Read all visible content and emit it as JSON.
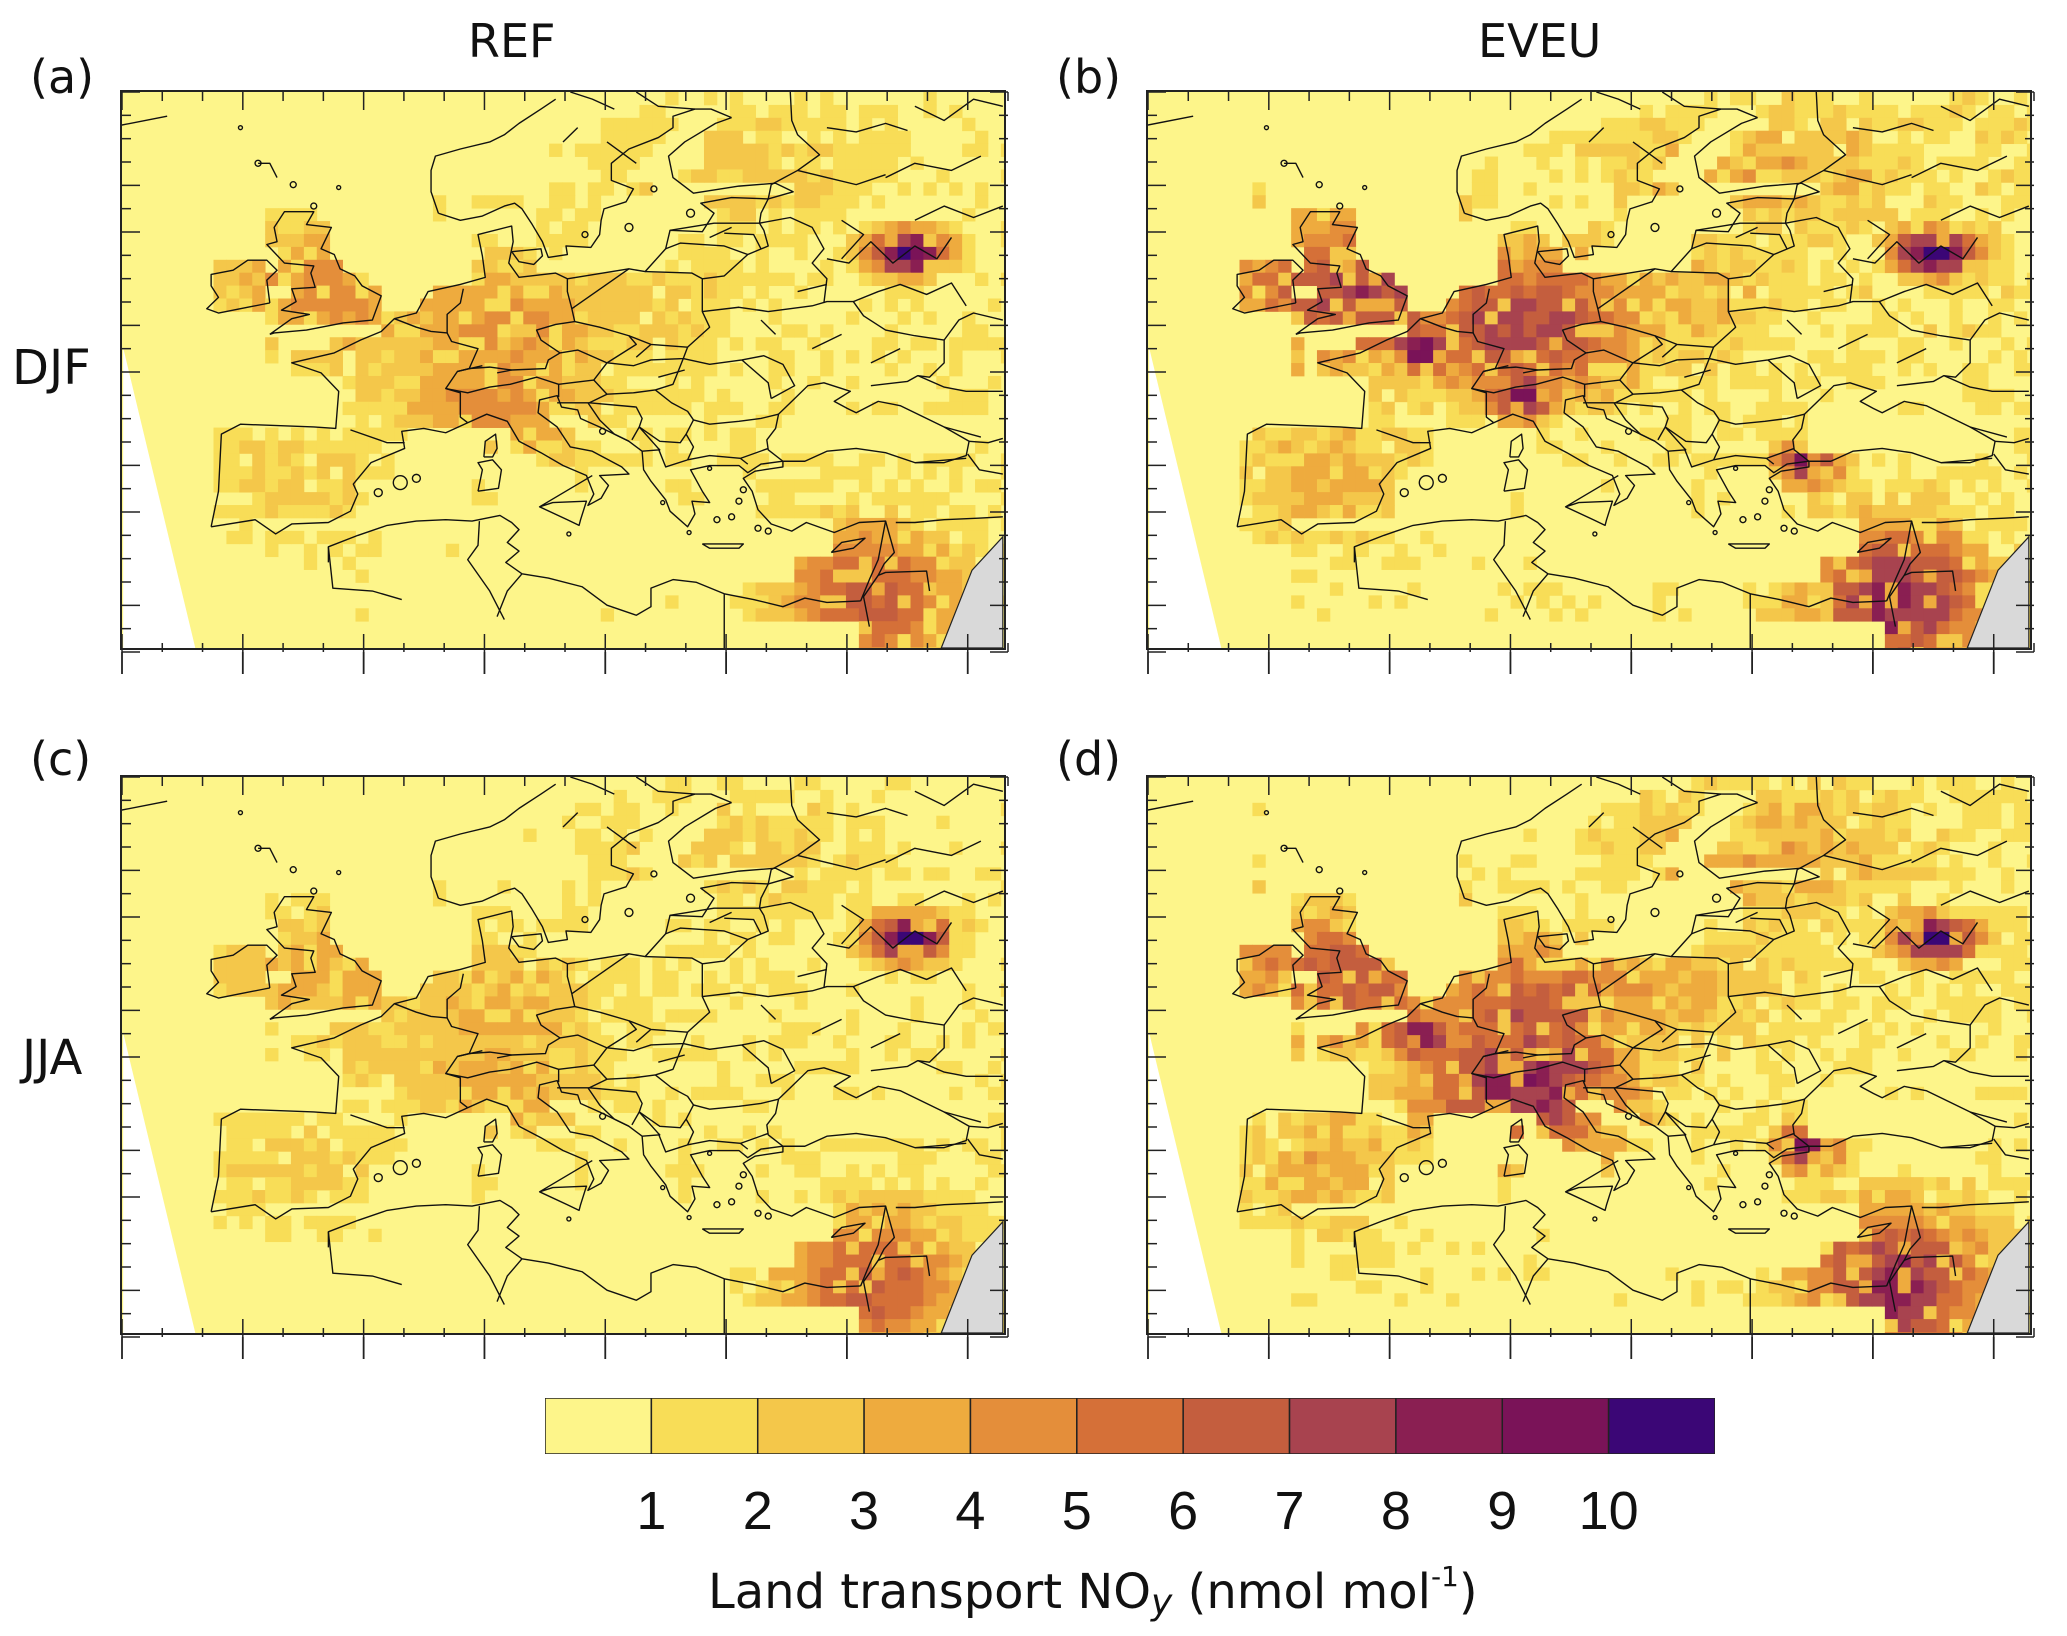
{
  "columns": [
    {
      "title": "REF"
    },
    {
      "title": "EVEU"
    }
  ],
  "rows": [
    {
      "title": "DJF"
    },
    {
      "title": "JJA"
    }
  ],
  "panels": [
    {
      "label": "(a)",
      "column": "REF",
      "season": "DJF",
      "hotspots": [
        {
          "lon": 10.0,
          "lat": 50.5,
          "value": 4
        },
        {
          "lon": -1.8,
          "lat": 53.0,
          "value": 4
        },
        {
          "lon": 2.5,
          "lat": 47.5,
          "value": 2
        },
        {
          "lon": 9.5,
          "lat": 45.3,
          "value": 4
        },
        {
          "lon": 19.0,
          "lat": 52.0,
          "value": 2
        },
        {
          "lon": 37.6,
          "lat": 55.7,
          "value": 10
        },
        {
          "lon": 26.0,
          "lat": 61.5,
          "value": 2
        },
        {
          "lon": 35.0,
          "lat": 31.5,
          "value": 6
        },
        {
          "lon": -4.0,
          "lat": 40.0,
          "value": 2
        }
      ]
    },
    {
      "label": "(b)",
      "column": "EVEU",
      "season": "DJF",
      "hotspots": [
        {
          "lon": 10.0,
          "lat": 50.5,
          "value": 7
        },
        {
          "lon": 2.3,
          "lat": 48.8,
          "value": 10
        },
        {
          "lon": -1.8,
          "lat": 53.0,
          "value": 7
        },
        {
          "lon": 9.5,
          "lat": 45.5,
          "value": 9
        },
        {
          "lon": 19.0,
          "lat": 52.0,
          "value": 3
        },
        {
          "lon": 37.6,
          "lat": 55.7,
          "value": 10
        },
        {
          "lon": 29.0,
          "lat": 41.0,
          "value": 9
        },
        {
          "lon": 26.0,
          "lat": 61.5,
          "value": 3
        },
        {
          "lon": 35.0,
          "lat": 31.5,
          "value": 8
        },
        {
          "lon": -4.0,
          "lat": 40.0,
          "value": 3
        }
      ]
    },
    {
      "label": "(c)",
      "column": "REF",
      "season": "JJA",
      "hotspots": [
        {
          "lon": 10.0,
          "lat": 50.5,
          "value": 3
        },
        {
          "lon": -1.8,
          "lat": 53.0,
          "value": 3
        },
        {
          "lon": 2.5,
          "lat": 47.5,
          "value": 2
        },
        {
          "lon": 9.5,
          "lat": 45.3,
          "value": 3
        },
        {
          "lon": 37.6,
          "lat": 55.7,
          "value": 10
        },
        {
          "lon": 26.0,
          "lat": 61.5,
          "value": 2
        },
        {
          "lon": 35.0,
          "lat": 31.5,
          "value": 6
        },
        {
          "lon": -4.0,
          "lat": 40.0,
          "value": 2
        }
      ]
    },
    {
      "label": "(d)",
      "column": "EVEU",
      "season": "JJA",
      "hotspots": [
        {
          "lon": 10.0,
          "lat": 50.5,
          "value": 6
        },
        {
          "lon": 2.3,
          "lat": 48.8,
          "value": 9
        },
        {
          "lon": -1.8,
          "lat": 53.0,
          "value": 6
        },
        {
          "lon": 9.5,
          "lat": 45.5,
          "value": 8
        },
        {
          "lon": 19.0,
          "lat": 52.0,
          "value": 3
        },
        {
          "lon": 37.6,
          "lat": 55.7,
          "value": 10
        },
        {
          "lon": 29.0,
          "lat": 41.0,
          "value": 9
        },
        {
          "lon": 26.0,
          "lat": 61.5,
          "value": 3
        },
        {
          "lon": 35.0,
          "lat": 31.5,
          "value": 8
        },
        {
          "lon": -4.0,
          "lat": 40.0,
          "value": 3
        }
      ]
    }
  ],
  "colorbar": {
    "ticks": [
      "1",
      "2",
      "3",
      "4",
      "5",
      "6",
      "7",
      "8",
      "9",
      "10"
    ],
    "colors": [
      "#fdf58a",
      "#f8dd57",
      "#f4c74a",
      "#eeab3e",
      "#e48e3a",
      "#d57038",
      "#c45e3e",
      "#a8434f",
      "#8a1f52",
      "#7a1358",
      "#3b0676"
    ]
  },
  "colorbar_label": {
    "main": "Land transport NO",
    "subscript": "y",
    "units_open": " (nmol mol",
    "superscript": "-1",
    "units_close": ")"
  },
  "colors": {
    "background": "#fdf58a",
    "no_data": "#d9d9d9",
    "coastline": "#111111"
  }
}
